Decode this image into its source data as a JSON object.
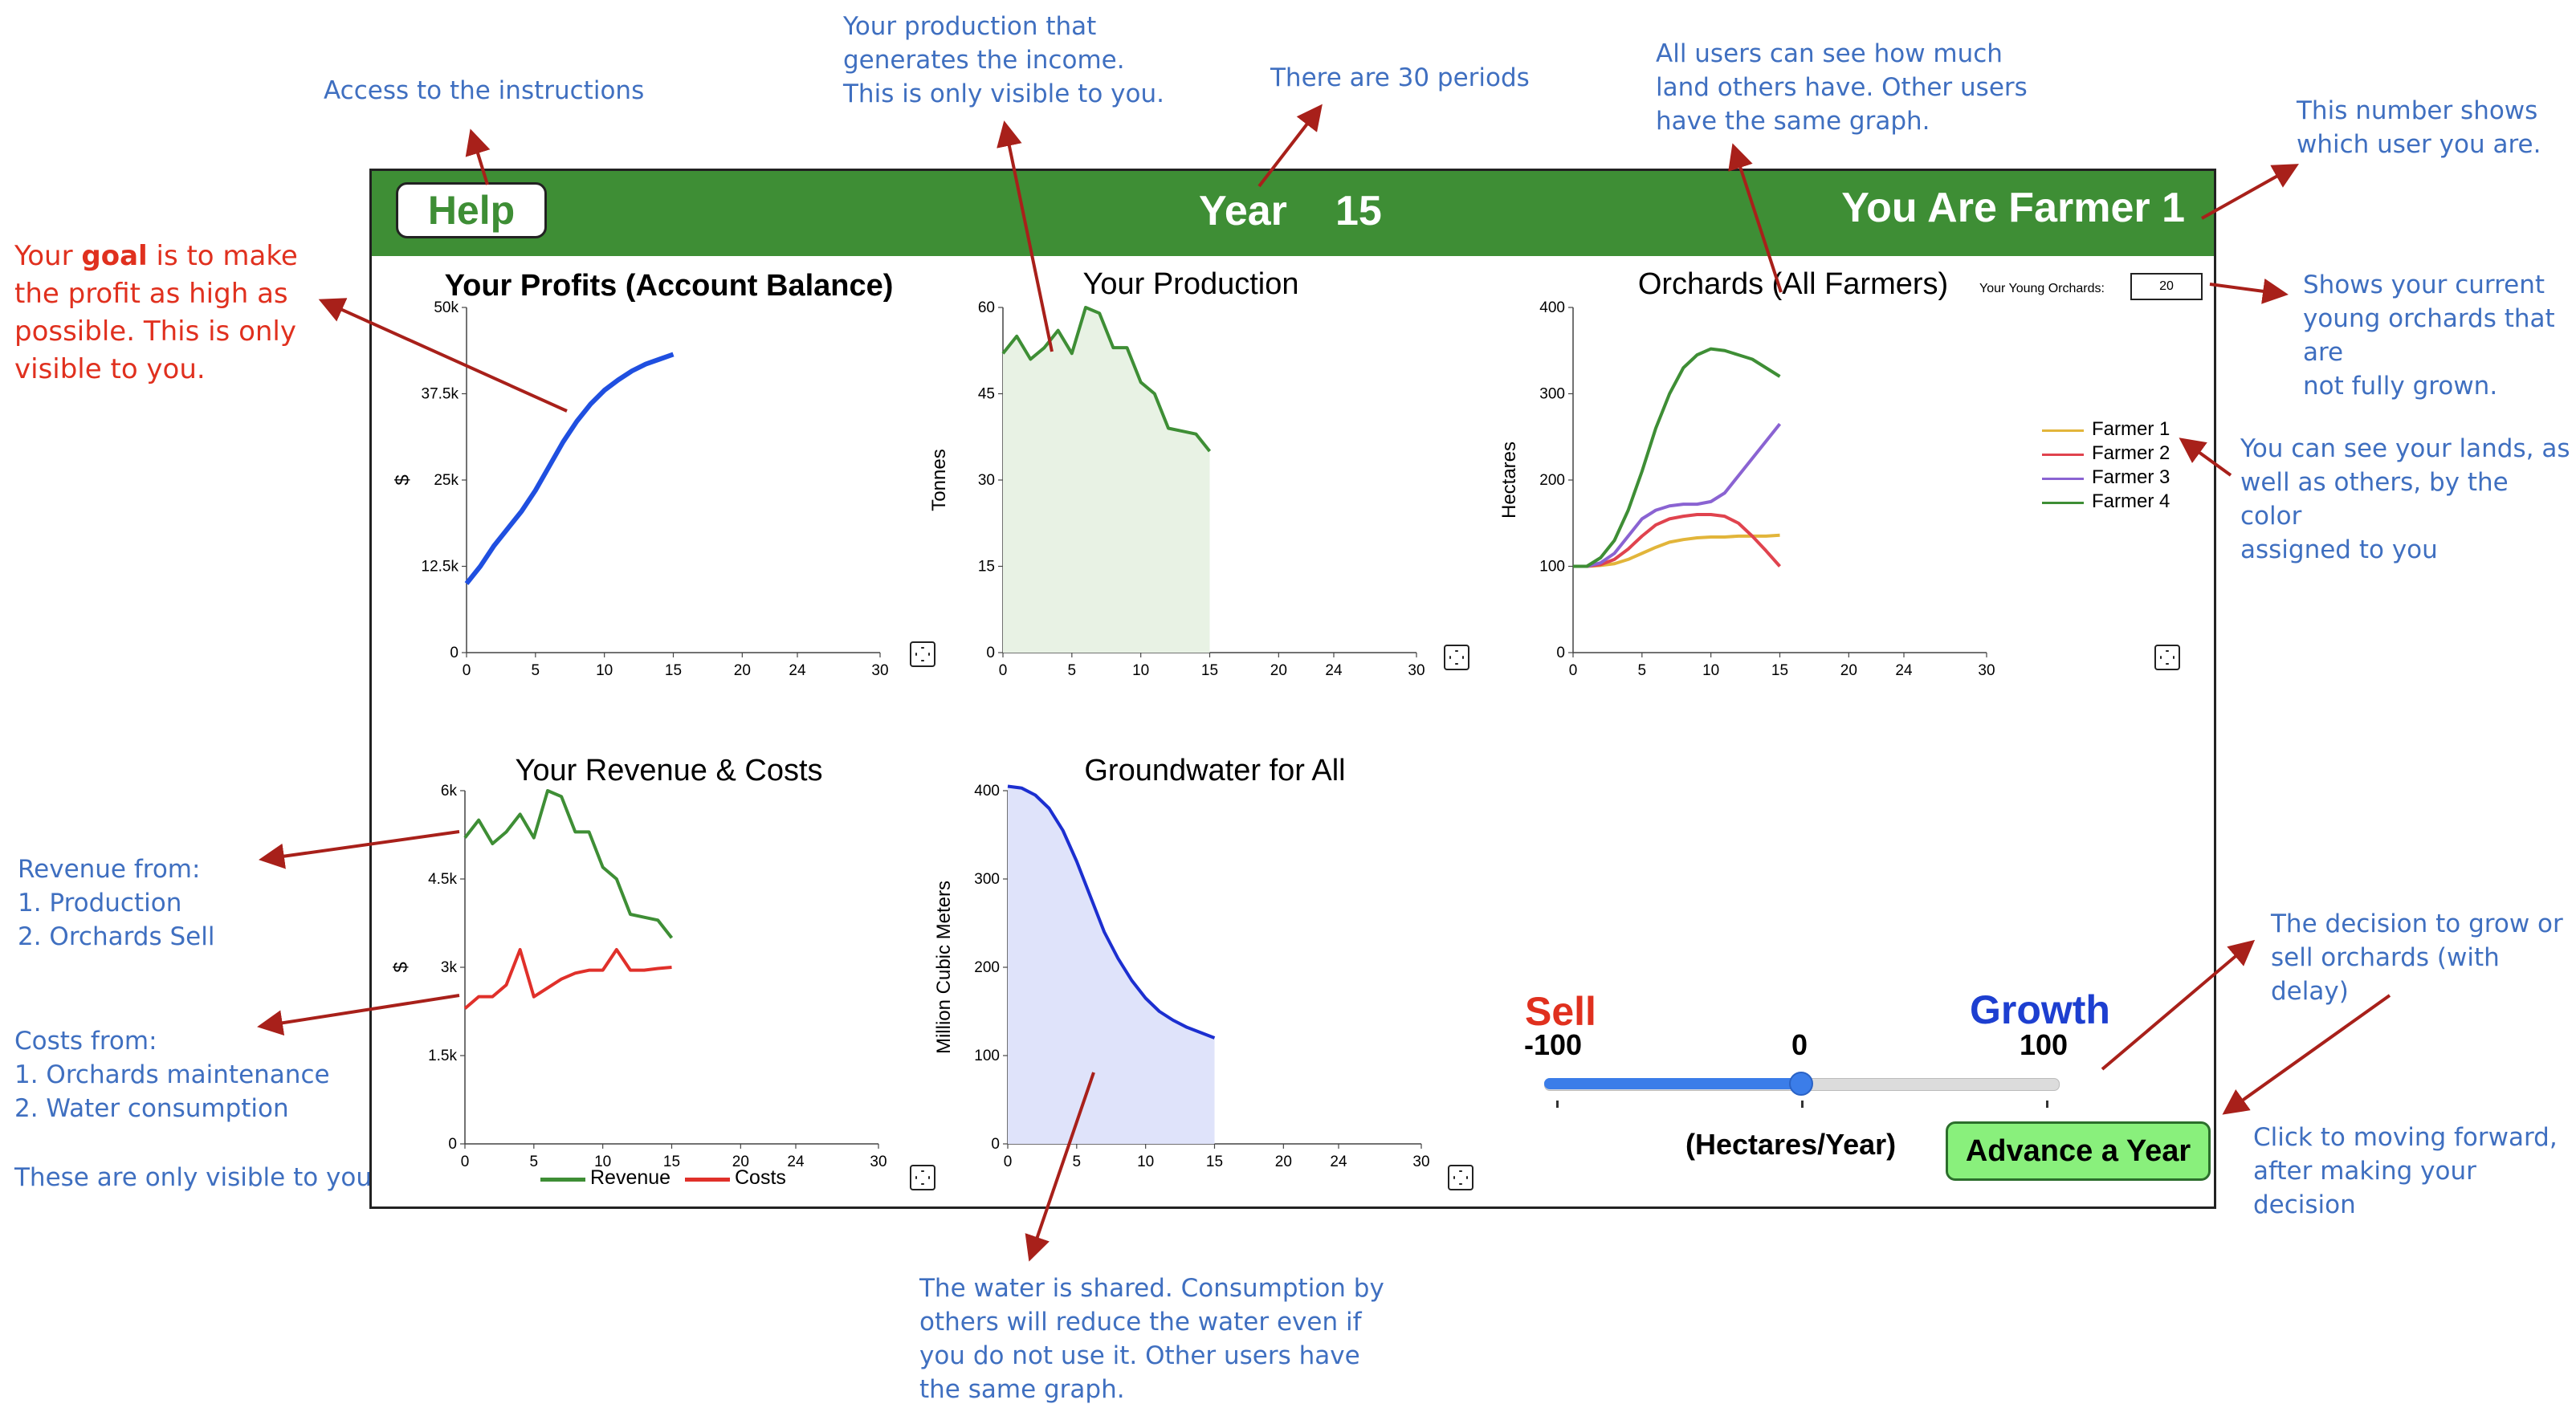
{
  "annotations": {
    "instructions": "Access to the instructions",
    "production_note": "Your production that\ngenerates the income.\nThis is only visible to you.",
    "periods": "There are 30 periods",
    "land_note": "All users can see how much\nland others have. Other users\nhave the same graph.",
    "user_note": "This number shows\nwhich user you are.",
    "goal_pre": "Your ",
    "goal_word": "goal",
    "goal_post": " is to make\nthe profit as high as\npossible. This is only\nvisible to you.",
    "young_note": "Shows your current\nyoung orchards that are\nnot fully grown.",
    "lands_note": "You can see your lands, as\nwell as others, by the color\nassigned to you",
    "revenue_note": "Revenue from:\n 1. Production\n 2. Orchards Sell",
    "costs_note": "Costs from:\n1. Orchards maintenance\n2. Water consumption",
    "visible_note": "These are only visible to you.",
    "decision_note": "The decision to grow or\nsell orchards (with delay)",
    "advance_note": "Click to moving forward,\nafter making your\ndecision",
    "water_note": "The water is shared. Consumption by\nothers will reduce the water even if\nyou do not use it. Other users have\nthe same graph."
  },
  "header": {
    "help_label": "Help",
    "year_label": "Year",
    "year_value": "15",
    "farmer_title": "You Are Farmer 1"
  },
  "young_orchards": {
    "label": "Your Young Orchards:",
    "value": "20"
  },
  "controls": {
    "sell_label": "Sell",
    "growth_label": "Growth",
    "min_label": "-100",
    "mid_label": "0",
    "max_label": "100",
    "slider_value": 0,
    "slider_min": -100,
    "slider_max": 100,
    "units_label": "(Hectares/Year)",
    "advance_label": "Advance a Year"
  },
  "colors": {
    "header_green": "#3e8e35",
    "profit_blue": "#1f4fe0",
    "production_green": "#3e8e35",
    "revenue_green": "#3e8e35",
    "costs_red": "#e0302a",
    "groundwater_blue": "#1c2fd0",
    "farmer1": "#e2b53a",
    "farmer2": "#e0434e",
    "farmer3": "#8a63d2",
    "farmer4": "#3e8e35"
  },
  "chart_data": [
    {
      "type": "line",
      "title": "Your Profits (Account Balance)",
      "xlabel": "",
      "ylabel": "$",
      "xlim": [
        0,
        30
      ],
      "ylim": [
        0,
        50000
      ],
      "xticks": [
        "0",
        "5",
        "10",
        "15",
        "20",
        "24",
        "30"
      ],
      "yticks": [
        "0",
        "12.5k",
        "25k",
        "37.5k",
        "50k"
      ],
      "series": [
        {
          "x": [
            0,
            1,
            2,
            3,
            4,
            5,
            6,
            7,
            8,
            9,
            10,
            11,
            12,
            13,
            14,
            15
          ],
          "values": [
            10000,
            12500,
            15500,
            18000,
            20500,
            23500,
            27000,
            30500,
            33500,
            36000,
            38000,
            39500,
            40800,
            41800,
            42500,
            43200
          ]
        }
      ]
    },
    {
      "type": "area",
      "title": "Your Production",
      "xlabel": "",
      "ylabel": "Tonnes",
      "xlim": [
        0,
        30
      ],
      "ylim": [
        0,
        60
      ],
      "xticks": [
        "0",
        "5",
        "10",
        "15",
        "20",
        "24",
        "30"
      ],
      "yticks": [
        "0",
        "15",
        "30",
        "45",
        "60"
      ],
      "series": [
        {
          "x": [
            0,
            1,
            2,
            3,
            4,
            5,
            6,
            7,
            8,
            9,
            10,
            11,
            12,
            13,
            14,
            15
          ],
          "values": [
            52,
            55,
            51,
            53,
            56,
            52,
            60,
            59,
            53,
            53,
            47,
            45,
            39,
            38.5,
            38,
            35
          ]
        }
      ]
    },
    {
      "type": "line",
      "title": "Orchards (All Farmers)",
      "xlabel": "",
      "ylabel": "Hectares",
      "xlim": [
        0,
        30
      ],
      "ylim": [
        0,
        400
      ],
      "xticks": [
        "0",
        "5",
        "10",
        "15",
        "20",
        "24",
        "30"
      ],
      "yticks": [
        "0",
        "100",
        "200",
        "300",
        "400"
      ],
      "series": [
        {
          "name": "Farmer 1",
          "x": [
            0,
            1,
            2,
            3,
            4,
            5,
            6,
            7,
            8,
            9,
            10,
            11,
            12,
            13,
            14,
            15
          ],
          "values": [
            100,
            100,
            101,
            103,
            108,
            115,
            122,
            128,
            131,
            133,
            134,
            134,
            135,
            135,
            135,
            136
          ]
        },
        {
          "name": "Farmer 2",
          "x": [
            0,
            1,
            2,
            3,
            4,
            5,
            6,
            7,
            8,
            9,
            10,
            11,
            12,
            13,
            14,
            15
          ],
          "values": [
            100,
            100,
            102,
            108,
            120,
            135,
            148,
            155,
            158,
            160,
            160,
            158,
            150,
            135,
            118,
            100
          ]
        },
        {
          "name": "Farmer 3",
          "x": [
            0,
            1,
            2,
            3,
            4,
            5,
            6,
            7,
            8,
            9,
            10,
            11,
            12,
            13,
            14,
            15
          ],
          "values": [
            100,
            100,
            104,
            115,
            135,
            155,
            165,
            170,
            172,
            172,
            175,
            185,
            205,
            225,
            245,
            265
          ]
        },
        {
          "name": "Farmer 4",
          "x": [
            0,
            1,
            2,
            3,
            4,
            5,
            6,
            7,
            8,
            9,
            10,
            11,
            12,
            13,
            14,
            15
          ],
          "values": [
            100,
            100,
            110,
            130,
            165,
            210,
            260,
            300,
            330,
            345,
            352,
            350,
            345,
            340,
            330,
            320
          ]
        }
      ]
    },
    {
      "type": "line",
      "title": "Your Revenue & Costs",
      "xlabel": "",
      "ylabel": "$",
      "xlim": [
        0,
        30
      ],
      "ylim": [
        0,
        6000
      ],
      "xticks": [
        "0",
        "5",
        "10",
        "15",
        "20",
        "24",
        "30"
      ],
      "yticks": [
        "0",
        "1.5k",
        "3k",
        "4.5k",
        "6k"
      ],
      "series": [
        {
          "name": "Revenue",
          "x": [
            0,
            1,
            2,
            3,
            4,
            5,
            6,
            7,
            8,
            9,
            10,
            11,
            12,
            13,
            14,
            15
          ],
          "values": [
            5200,
            5500,
            5100,
            5300,
            5600,
            5200,
            6000,
            5900,
            5300,
            5300,
            4700,
            4500,
            3900,
            3850,
            3800,
            3500
          ]
        },
        {
          "name": "Costs",
          "x": [
            0,
            1,
            2,
            3,
            4,
            5,
            6,
            7,
            8,
            9,
            10,
            11,
            12,
            13,
            14,
            15
          ],
          "values": [
            2300,
            2500,
            2500,
            2700,
            3300,
            2500,
            2650,
            2800,
            2900,
            2950,
            2950,
            3300,
            2950,
            2950,
            2980,
            3000
          ]
        }
      ]
    },
    {
      "type": "area",
      "title": "Groundwater for All",
      "xlabel": "",
      "ylabel": "Million Cubic Meters",
      "xlim": [
        0,
        30
      ],
      "ylim": [
        0,
        400
      ],
      "xticks": [
        "0",
        "5",
        "10",
        "15",
        "20",
        "24",
        "30"
      ],
      "yticks": [
        "0",
        "100",
        "200",
        "300",
        "400"
      ],
      "series": [
        {
          "x": [
            0,
            1,
            2,
            3,
            4,
            5,
            6,
            7,
            8,
            9,
            10,
            11,
            12,
            13,
            14,
            15
          ],
          "values": [
            405,
            403,
            395,
            380,
            355,
            320,
            280,
            240,
            210,
            185,
            165,
            150,
            140,
            132,
            126,
            120
          ]
        }
      ]
    }
  ]
}
